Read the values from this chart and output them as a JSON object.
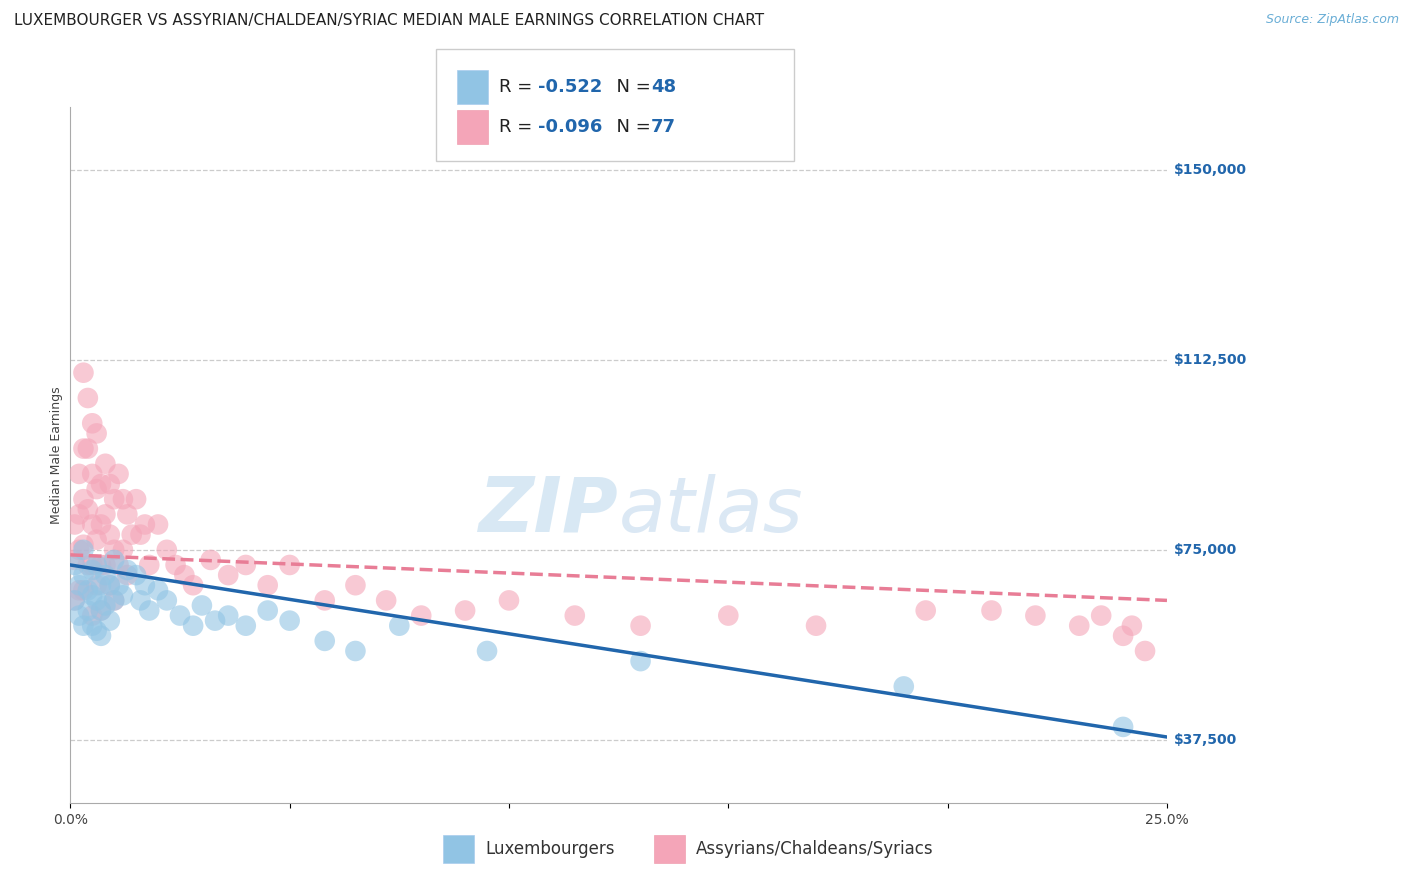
{
  "title": "LUXEMBOURGER VS ASSYRIAN/CHALDEAN/SYRIAC MEDIAN MALE EARNINGS CORRELATION CHART",
  "source": "Source: ZipAtlas.com",
  "ylabel": "Median Male Earnings",
  "xlim": [
    0.0,
    0.25
  ],
  "ylim": [
    25000,
    162500
  ],
  "yticks": [
    37500,
    75000,
    112500,
    150000
  ],
  "ytick_labels": [
    "$37,500",
    "$75,000",
    "$112,500",
    "$150,000"
  ],
  "xticks": [
    0.0,
    0.05,
    0.1,
    0.15,
    0.2,
    0.25
  ],
  "xtick_labels": [
    "0.0%",
    "",
    "",
    "",
    "",
    "25.0%"
  ],
  "blue_R": "-0.522",
  "blue_N": "48",
  "pink_R": "-0.096",
  "pink_N": "77",
  "legend_label_blue": "Luxembourgers",
  "legend_label_pink": "Assyrians/Chaldeans/Syriacs",
  "watermark_zip": "ZIP",
  "watermark_atlas": "atlas",
  "blue_color": "#91c4e4",
  "pink_color": "#f4a5b8",
  "blue_line_color": "#2166ac",
  "pink_line_color": "#e87d96",
  "background_color": "#ffffff",
  "grid_color": "#cccccc",
  "title_fontsize": 11,
  "source_fontsize": 9,
  "axis_label_fontsize": 9,
  "tick_fontsize": 10,
  "legend_fontsize": 13,
  "blue_scatter_x": [
    0.001,
    0.001,
    0.002,
    0.002,
    0.003,
    0.003,
    0.003,
    0.004,
    0.004,
    0.005,
    0.005,
    0.005,
    0.006,
    0.006,
    0.006,
    0.007,
    0.007,
    0.007,
    0.008,
    0.008,
    0.009,
    0.009,
    0.01,
    0.01,
    0.011,
    0.012,
    0.013,
    0.015,
    0.016,
    0.017,
    0.018,
    0.02,
    0.022,
    0.025,
    0.028,
    0.03,
    0.033,
    0.036,
    0.04,
    0.045,
    0.05,
    0.058,
    0.065,
    0.075,
    0.095,
    0.13,
    0.19,
    0.24
  ],
  "blue_scatter_y": [
    72000,
    65000,
    68000,
    62000,
    75000,
    70000,
    60000,
    67000,
    63000,
    71000,
    66000,
    60000,
    72000,
    65000,
    59000,
    68000,
    63000,
    58000,
    70000,
    64000,
    68000,
    61000,
    73000,
    65000,
    68000,
    66000,
    71000,
    70000,
    65000,
    68000,
    63000,
    67000,
    65000,
    62000,
    60000,
    64000,
    61000,
    62000,
    60000,
    63000,
    61000,
    57000,
    55000,
    60000,
    55000,
    53000,
    48000,
    40000
  ],
  "pink_scatter_x": [
    0.001,
    0.001,
    0.001,
    0.002,
    0.002,
    0.002,
    0.002,
    0.003,
    0.003,
    0.003,
    0.003,
    0.003,
    0.004,
    0.004,
    0.004,
    0.004,
    0.005,
    0.005,
    0.005,
    0.005,
    0.005,
    0.006,
    0.006,
    0.006,
    0.006,
    0.007,
    0.007,
    0.007,
    0.007,
    0.008,
    0.008,
    0.008,
    0.009,
    0.009,
    0.009,
    0.01,
    0.01,
    0.01,
    0.011,
    0.011,
    0.012,
    0.012,
    0.013,
    0.013,
    0.014,
    0.015,
    0.016,
    0.017,
    0.018,
    0.02,
    0.022,
    0.024,
    0.026,
    0.028,
    0.032,
    0.036,
    0.04,
    0.045,
    0.05,
    0.058,
    0.065,
    0.072,
    0.08,
    0.09,
    0.1,
    0.115,
    0.13,
    0.15,
    0.17,
    0.195,
    0.21,
    0.22,
    0.23,
    0.235,
    0.24,
    0.242,
    0.245
  ],
  "pink_scatter_y": [
    80000,
    73000,
    65000,
    90000,
    82000,
    75000,
    67000,
    110000,
    95000,
    85000,
    76000,
    67000,
    105000,
    95000,
    83000,
    72000,
    100000,
    90000,
    80000,
    72000,
    62000,
    98000,
    87000,
    77000,
    68000,
    88000,
    80000,
    72000,
    63000,
    92000,
    82000,
    72000,
    88000,
    78000,
    68000,
    85000,
    75000,
    65000,
    90000,
    72000,
    85000,
    75000,
    82000,
    70000,
    78000,
    85000,
    78000,
    80000,
    72000,
    80000,
    75000,
    72000,
    70000,
    68000,
    73000,
    70000,
    72000,
    68000,
    72000,
    65000,
    68000,
    65000,
    62000,
    63000,
    65000,
    62000,
    60000,
    62000,
    60000,
    63000,
    63000,
    62000,
    60000,
    62000,
    58000,
    60000,
    55000
  ]
}
